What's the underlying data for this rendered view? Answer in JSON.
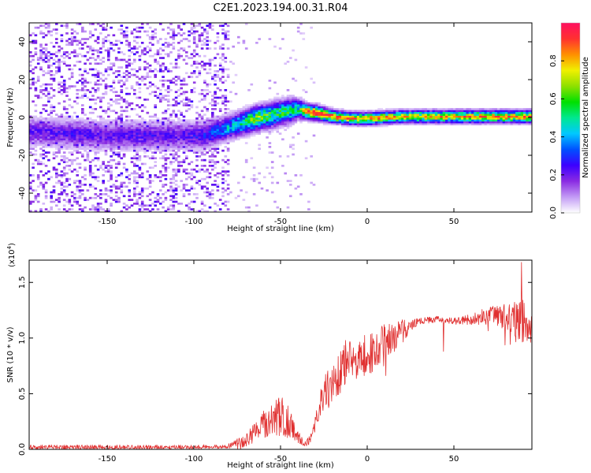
{
  "title": "C2E1.2023.194.00.31.R04",
  "chart_data": [
    {
      "type": "heatmap",
      "title": "C2E1.2023.194.00.31.R04",
      "xlabel": "Height of straight line (km)",
      "ylabel": "Frequency (Hz)",
      "xlim": [
        -195,
        95
      ],
      "ylim": [
        -50,
        50
      ],
      "xticks": [
        -150,
        -100,
        -50,
        0,
        50
      ],
      "yticks": [
        -40,
        -20,
        0,
        20,
        40
      ],
      "colorbar": {
        "label": "Normalized spectral amplitude",
        "range": [
          0.0,
          1.0
        ],
        "ticks": [
          0.0,
          0.2,
          0.4,
          0.6,
          0.8
        ],
        "tick_labels": [
          "0.0",
          "0.2",
          "0.4",
          "0.6",
          "0.8"
        ],
        "colors": [
          "#ffffff",
          "#c39bf5",
          "#8a2be2",
          "#3c00ff",
          "#0050ff",
          "#00c8ff",
          "#00e890",
          "#00e000",
          "#8fe000",
          "#f0f000",
          "#ff9000",
          "#ff3030",
          "#ff1060"
        ]
      },
      "ridge": {
        "description": "dominant frequency trace by height",
        "x": [
          -190,
          -170,
          -150,
          -130,
          -110,
          -95,
          -85,
          -75,
          -65,
          -55,
          -45,
          -40,
          -35,
          -30,
          -20,
          -10,
          0,
          20,
          40,
          60,
          80,
          95
        ],
        "y": [
          -8,
          -9,
          -10,
          -10,
          -10,
          -10,
          -7,
          -4,
          -1,
          1,
          3,
          4,
          2.5,
          2,
          0,
          -1,
          -1,
          0,
          0,
          0,
          0,
          0
        ],
        "peak_amplitude": [
          0.2,
          0.22,
          0.2,
          0.22,
          0.2,
          0.25,
          0.35,
          0.45,
          0.6,
          0.55,
          0.5,
          0.5,
          0.8,
          0.85,
          0.8,
          0.75,
          0.75,
          0.7,
          0.72,
          0.75,
          0.78,
          0.75
        ],
        "band_halfwidth": [
          6,
          6,
          6,
          6,
          6,
          6,
          5,
          5,
          5,
          5,
          5,
          4,
          3,
          3,
          2.5,
          2.5,
          2.5,
          2.5,
          2.5,
          2.5,
          2.5,
          2.5
        ]
      },
      "noise_region": {
        "x_range": [
          -195,
          -80
        ],
        "y_range": [
          -50,
          50
        ]
      }
    },
    {
      "type": "line",
      "xlabel": "Height of straight line (km)",
      "ylabel": "SNR (10 * v/v)",
      "y_multiplier": "(x10^4)",
      "y_multiplier_base": "(x10",
      "y_multiplier_exp": "4",
      "y_multiplier_close": ")",
      "xlim": [
        -195,
        95
      ],
      "ylim": [
        0,
        1.7
      ],
      "xticks": [
        -150,
        -100,
        -50,
        0,
        50
      ],
      "yticks": [
        0.0,
        0.5,
        1.0,
        1.5
      ],
      "ytick_labels": [
        "0.0",
        "0.5",
        "1.0",
        "1.5"
      ],
      "series": [
        {
          "name": "SNR",
          "color": "#e03030",
          "envelope_x": [
            -195,
            -100,
            -80,
            -70,
            -60,
            -55,
            -50,
            -45,
            -42,
            -38,
            -35,
            -32,
            -28,
            -25,
            -20,
            -15,
            -10,
            -5,
            0,
            5,
            10,
            15,
            20,
            25,
            30,
            40,
            50,
            60,
            70,
            80,
            90,
            95
          ],
          "envelope_y": [
            0.02,
            0.02,
            0.03,
            0.08,
            0.22,
            0.28,
            0.3,
            0.25,
            0.15,
            0.08,
            0.05,
            0.12,
            0.35,
            0.5,
            0.62,
            0.72,
            0.8,
            0.82,
            0.85,
            0.88,
            0.95,
            1.0,
            1.05,
            1.12,
            1.15,
            1.17,
            1.15,
            1.17,
            1.2,
            1.2,
            1.15,
            1.1
          ],
          "fluctuation_amplitude": [
            0.02,
            0.02,
            0.02,
            0.06,
            0.12,
            0.15,
            0.18,
            0.15,
            0.08,
            0.04,
            0.03,
            0.05,
            0.12,
            0.15,
            0.2,
            0.22,
            0.22,
            0.2,
            0.18,
            0.2,
            0.18,
            0.15,
            0.12,
            0.06,
            0.03,
            0.03,
            0.03,
            0.05,
            0.08,
            0.12,
            0.2,
            0.15
          ],
          "max_value": 1.68,
          "max_at_x": 89
        }
      ]
    }
  ]
}
